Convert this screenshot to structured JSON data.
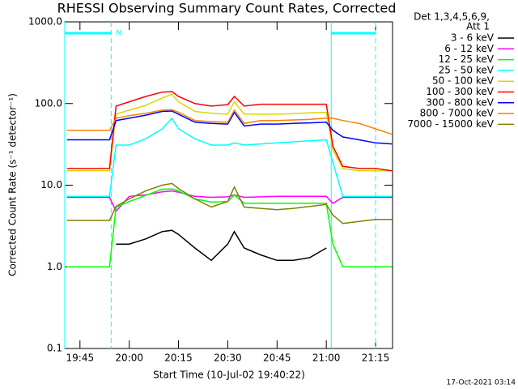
{
  "chart_data": {
    "type": "line",
    "title": "RHESSI Observing Summary Count Rates, Corrected",
    "x_label": "Start Time (10-Jul-02 19:40:22)",
    "y_label": "Corrected Count Rate (s⁻¹ detector⁻¹)",
    "legend_header": [
      "Det 1,3,4,5,6,9,",
      "Att 1"
    ],
    "footer": "17-Oct-2021 03:14",
    "log_scale_y": true,
    "xlim": [
      "19:40:22",
      "21:20:10"
    ],
    "xticks": [
      "19:45",
      "20:00",
      "20:15",
      "20:30",
      "20:45",
      "21:00",
      "21:15"
    ],
    "ylim": [
      0.1,
      1000
    ],
    "yticks": [
      {
        "value": 0.1,
        "label": "0.1"
      },
      {
        "value": 1,
        "label": "1.0"
      },
      {
        "value": 10,
        "label": "10.0"
      },
      {
        "value": 100,
        "label": "100.0"
      },
      {
        "value": 1000,
        "label": "1000.0"
      }
    ],
    "night": [
      [
        "19:40:22",
        "19:54:30"
      ],
      [
        "21:01:30",
        "21:15:00"
      ]
    ],
    "night_label": "N",
    "x": [
      "19:41",
      "19:45",
      "19:50",
      "19:54",
      "19:56",
      "20:00",
      "20:05",
      "20:10",
      "20:13",
      "20:15",
      "20:20",
      "20:25",
      "20:30",
      "20:32",
      "20:35",
      "20:40",
      "20:45",
      "20:50",
      "20:55",
      "21:00",
      "21:02",
      "21:05",
      "21:10",
      "21:15",
      "21:20"
    ],
    "series": [
      {
        "name": "3 - 6 keV",
        "color": "#000000",
        "values": [
          null,
          null,
          null,
          null,
          1.9,
          1.9,
          2.2,
          2.7,
          2.8,
          2.5,
          1.7,
          1.2,
          1.9,
          2.7,
          1.7,
          1.4,
          1.2,
          1.2,
          1.3,
          1.7,
          null,
          null,
          null,
          null,
          null
        ]
      },
      {
        "name": "6 - 12 keV",
        "color": "#ff00ff",
        "values": [
          7.1,
          7.1,
          7.1,
          7.1,
          4.8,
          7.3,
          7.6,
          8.3,
          8.5,
          8.2,
          7.3,
          7.1,
          7.2,
          7.6,
          7.1,
          7.2,
          7.3,
          7.3,
          7.3,
          7.3,
          6,
          7.1,
          7.1,
          7.1,
          7.1
        ]
      },
      {
        "name": "12 - 25 keV",
        "color": "#00ff00",
        "values": [
          1,
          1,
          1,
          1,
          5.4,
          6.3,
          7.5,
          8.9,
          9,
          8.5,
          6.8,
          6.2,
          6.3,
          7.6,
          6,
          6,
          6,
          6,
          6,
          6,
          1.9,
          1,
          1,
          1,
          1
        ]
      },
      {
        "name": "25 - 50 keV",
        "color": "#00ffff",
        "values": [
          7.3,
          7.3,
          7.3,
          7.3,
          31,
          31,
          37,
          49,
          66,
          49,
          37,
          31,
          31,
          33,
          31,
          32,
          33,
          34,
          35,
          36,
          19,
          7.3,
          7.3,
          7.3,
          7.3
        ]
      },
      {
        "name": "50 - 100 keV",
        "color": "#d8d800",
        "values": [
          15,
          15,
          15,
          15,
          74,
          83,
          95,
          117,
          130,
          105,
          80,
          76,
          74,
          105,
          74,
          74,
          74,
          75,
          77,
          78,
          27,
          16,
          15,
          15,
          15
        ]
      },
      {
        "name": "100 - 300 keV",
        "color": "#ff0000",
        "values": [
          16,
          16,
          16,
          16,
          93,
          105,
          122,
          138,
          140,
          122,
          100,
          93,
          97,
          122,
          93,
          98,
          98,
          98,
          98,
          98,
          30,
          17,
          16,
          16,
          15
        ]
      },
      {
        "name": "300 - 800 keV",
        "color": "#0000ff",
        "values": [
          36,
          36,
          36,
          36,
          62,
          66,
          72,
          80,
          81,
          74,
          59,
          57,
          56,
          78,
          53,
          56,
          56,
          57,
          58,
          59,
          47,
          39,
          36,
          33,
          32
        ]
      },
      {
        "name": "800 - 7000 keV",
        "color": "#ff8000",
        "values": [
          47,
          47,
          47,
          47,
          66,
          71,
          76,
          83,
          84,
          78,
          62,
          60,
          59,
          83,
          57,
          62,
          62,
          63,
          64,
          66,
          66,
          62,
          57,
          49,
          42
        ]
      },
      {
        "name": "7000 - 15000 keV",
        "color": "#808000",
        "values": [
          3.7,
          3.7,
          3.7,
          3.7,
          5.5,
          6.8,
          8.5,
          10,
          10.5,
          9.1,
          6.8,
          5.4,
          6.3,
          9.5,
          5.4,
          5.2,
          5,
          5.2,
          5.5,
          5.8,
          4.3,
          3.4,
          3.6,
          3.8,
          3.8
        ]
      }
    ]
  }
}
